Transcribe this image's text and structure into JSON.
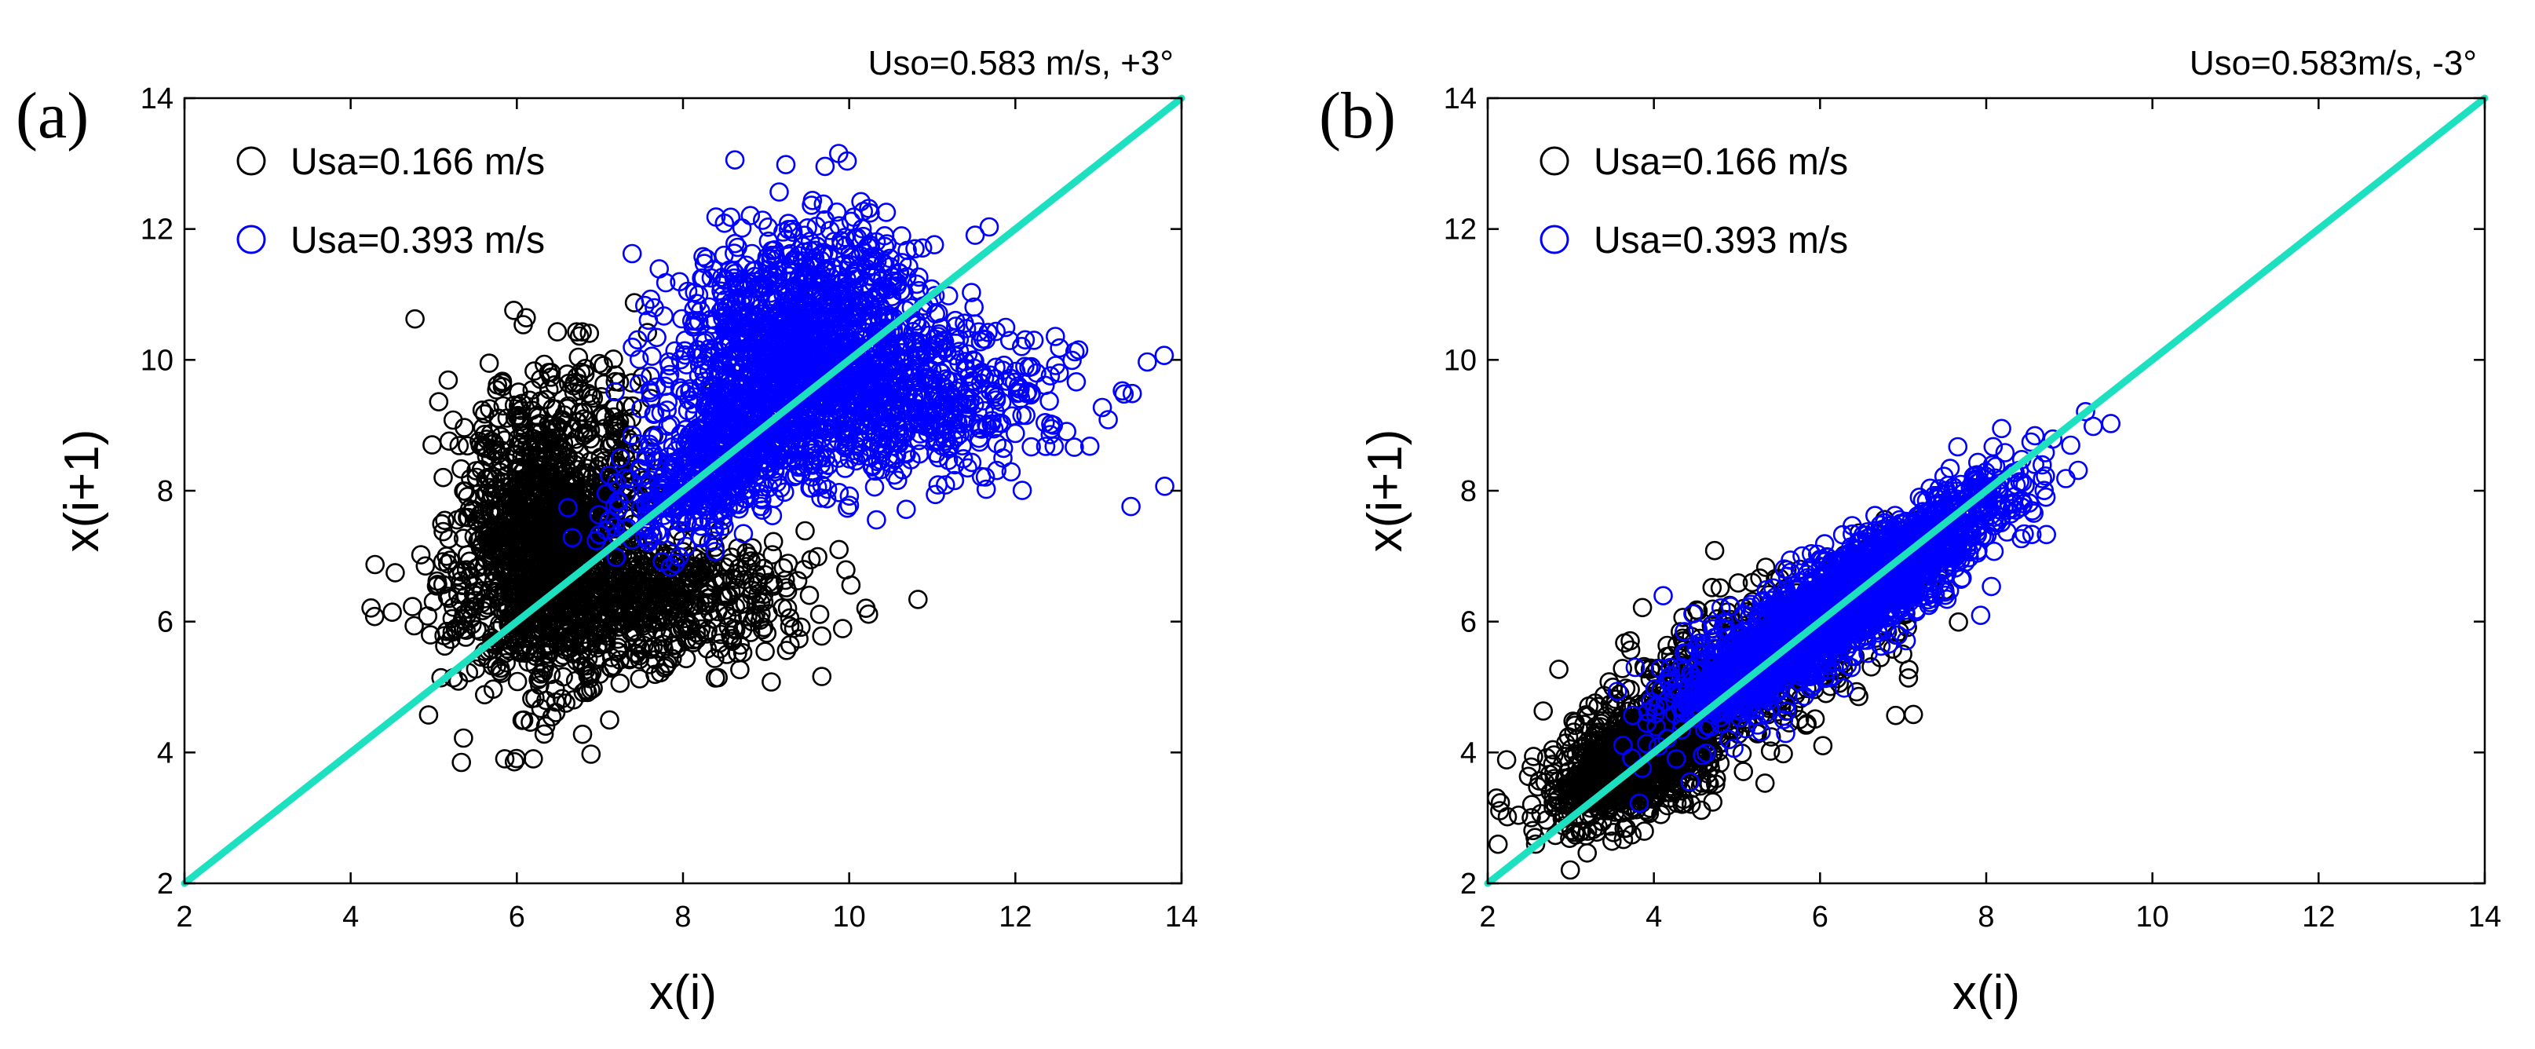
{
  "chart_data": [
    {
      "panel_label": "(a)",
      "type": "scatter",
      "title": "Uso=0.583 m/s, +3°",
      "xlabel": "x(i)",
      "ylabel": "x(i+1)",
      "xlim": [
        2,
        14
      ],
      "ylim": [
        2,
        14
      ],
      "xticks": [
        2,
        4,
        6,
        8,
        10,
        12,
        14
      ],
      "yticks": [
        2,
        4,
        6,
        8,
        10,
        12,
        14
      ],
      "grid": false,
      "legend_position": "top-left",
      "reference_line": {
        "name": "y = x",
        "color": "#1de0c0",
        "x": [
          2,
          14
        ],
        "y": [
          2,
          14
        ]
      },
      "series": [
        {
          "name": "Usa=0.166 m/s",
          "color": "#000000",
          "marker": "open-circle",
          "clusters": [
            {
              "cx": 6.4,
              "cy": 7.4,
              "sx": 0.55,
              "sy": 1.2,
              "corr": 0.15,
              "n": 1300
            },
            {
              "cx": 7.4,
              "cy": 6.3,
              "sx": 1.05,
              "sy": 0.5,
              "corr": 0.1,
              "n": 650
            }
          ]
        },
        {
          "name": "Usa=0.393 m/s",
          "color": "#0000ff",
          "marker": "open-circle",
          "clusters": [
            {
              "cx": 9.4,
              "cy": 10.3,
              "sx": 0.75,
              "sy": 0.9,
              "corr": 0.2,
              "n": 1100
            },
            {
              "cx": 10.3,
              "cy": 9.4,
              "sx": 1.15,
              "sy": 0.65,
              "corr": 0.1,
              "n": 750
            },
            {
              "cx": 8.4,
              "cy": 8.4,
              "sx": 0.6,
              "sy": 0.6,
              "corr": 0.6,
              "n": 500
            }
          ]
        }
      ]
    },
    {
      "panel_label": "(b)",
      "type": "scatter",
      "title": "Uso=0.583m/s, -3°",
      "xlabel": "x(i)",
      "ylabel": "x(i+1)",
      "xlim": [
        2,
        14
      ],
      "ylim": [
        2,
        14
      ],
      "xticks": [
        2,
        4,
        6,
        8,
        10,
        12,
        14
      ],
      "yticks": [
        2,
        4,
        6,
        8,
        10,
        12,
        14
      ],
      "grid": false,
      "legend_position": "top-left",
      "reference_line": {
        "name": "y = x",
        "color": "#1de0c0",
        "x": [
          2,
          14
        ],
        "y": [
          2,
          14
        ]
      },
      "series": [
        {
          "name": "Usa=0.166 m/s",
          "color": "#000000",
          "marker": "open-circle",
          "clusters": [
            {
              "cx": 3.8,
              "cy": 3.9,
              "sx": 0.5,
              "sy": 0.5,
              "corr": 0.5,
              "n": 900
            },
            {
              "cx": 5.2,
              "cy": 5.3,
              "sx": 1.0,
              "sy": 0.9,
              "corr": 0.7,
              "n": 600
            }
          ]
        },
        {
          "name": "Usa=0.393 m/s",
          "color": "#0000ff",
          "marker": "open-circle",
          "clusters": [
            {
              "cx": 6.6,
              "cy": 6.6,
              "sx": 0.85,
              "sy": 0.75,
              "corr": 0.85,
              "n": 1600
            },
            {
              "cx": 5.2,
              "cy": 5.3,
              "sx": 0.6,
              "sy": 0.55,
              "corr": 0.6,
              "n": 500
            }
          ]
        }
      ]
    }
  ]
}
